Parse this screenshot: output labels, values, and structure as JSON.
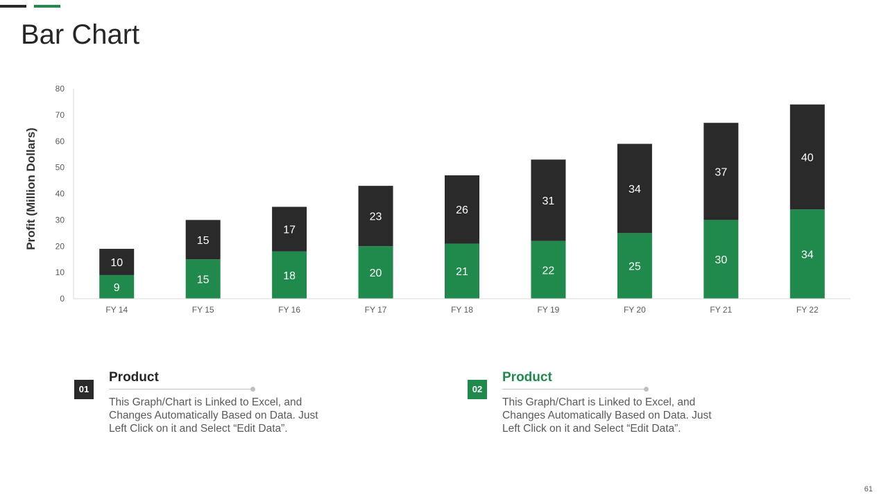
{
  "slide": {
    "title": "Bar Chart",
    "page_number": "61",
    "colors": {
      "dark": "#2b2a2b",
      "green": "#1f8a4c",
      "accent_line": "#bfbfbf"
    }
  },
  "chart_data": {
    "type": "bar",
    "stacked": true,
    "categories": [
      "FY 14",
      "FY 15",
      "FY 16",
      "FY 17",
      "FY 18",
      "FY 19",
      "FY 20",
      "FY 21",
      "FY 22"
    ],
    "series": [
      {
        "color": "#1f8a4c",
        "values": [
          9,
          15,
          18,
          20,
          21,
          22,
          25,
          30,
          34
        ]
      },
      {
        "color": "#2b2a2b",
        "values": [
          10,
          15,
          17,
          23,
          26,
          31,
          34,
          37,
          40
        ]
      }
    ],
    "ylabel": "Profit  (Million Dollars)",
    "ylim": [
      0,
      80
    ],
    "yticks": [
      0,
      10,
      20,
      30,
      40,
      50,
      60,
      70,
      80
    ],
    "grid": false,
    "legend": "none"
  },
  "info": [
    {
      "number": "01",
      "title": "Product",
      "text": "This Graph/Chart is Linked to Excel, and Changes Automatically Based on Data. Just Left Click on it and Select “Edit Data”."
    },
    {
      "number": "02",
      "title": "Product",
      "text": "This Graph/Chart is Linked to Excel, and Changes Automatically Based on Data. Just Left Click on it and Select “Edit Data”."
    }
  ]
}
